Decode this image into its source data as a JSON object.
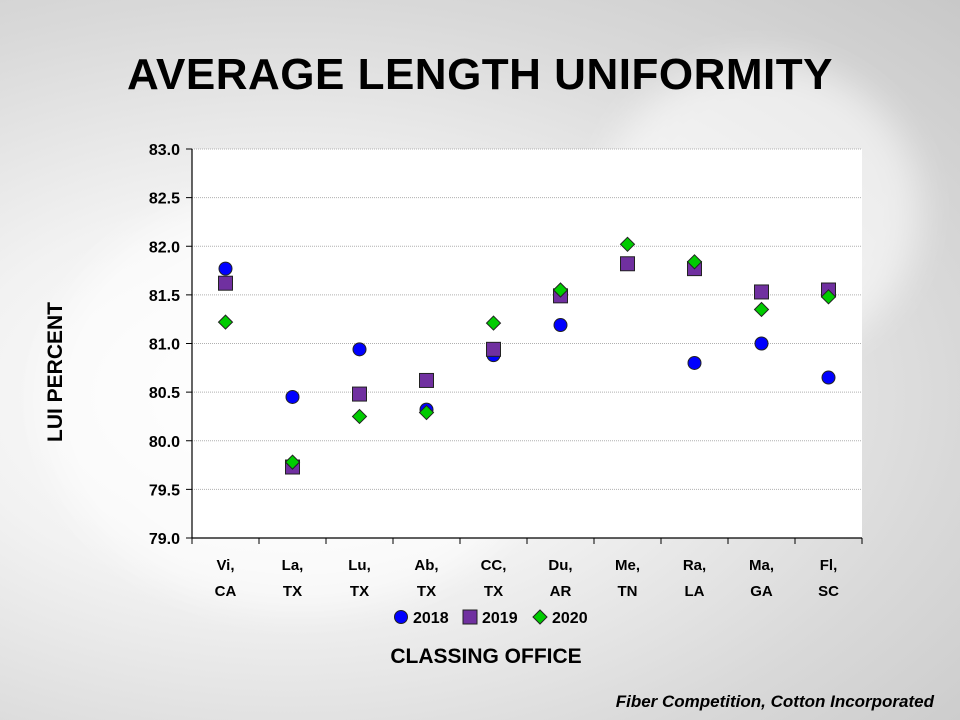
{
  "slide": {
    "title": "AVERAGE LENGTH UNIFORMITY",
    "credit": "Fiber Competition, Cotton Incorporated"
  },
  "chart_data": {
    "type": "scatter",
    "title": "",
    "xlabel": "CLASSING OFFICE",
    "ylabel": "LUI PERCENT",
    "ylim": [
      79.0,
      83.0
    ],
    "yticks": [
      "79.0",
      "79.5",
      "80.0",
      "80.5",
      "81.0",
      "81.5",
      "82.0",
      "82.5",
      "83.0"
    ],
    "categories": [
      [
        "Vi,",
        "CA"
      ],
      [
        "La,",
        "TX"
      ],
      [
        "Lu,",
        "TX"
      ],
      [
        "Ab,",
        "TX"
      ],
      [
        "CC,",
        "TX"
      ],
      [
        "Du,",
        "AR"
      ],
      [
        "Me,",
        "TN"
      ],
      [
        "Ra,",
        "LA"
      ],
      [
        "Ma,",
        "GA"
      ],
      [
        "Fl,",
        "SC"
      ]
    ],
    "grid": true,
    "legend_position": "bottom",
    "series": [
      {
        "name": "2018",
        "marker": "circle",
        "color": "#0000FF",
        "values": [
          81.77,
          80.45,
          80.94,
          80.32,
          80.88,
          81.19,
          81.82,
          80.8,
          81.0,
          80.65
        ]
      },
      {
        "name": "2019",
        "marker": "square",
        "color": "#7030A0",
        "values": [
          81.62,
          79.73,
          80.48,
          80.62,
          80.94,
          81.49,
          81.82,
          81.77,
          81.53,
          81.55
        ]
      },
      {
        "name": "2020",
        "marker": "diamond",
        "color": "#00CC00",
        "values": [
          81.22,
          79.78,
          80.25,
          80.29,
          81.21,
          81.55,
          82.02,
          81.84,
          81.35,
          81.48
        ]
      }
    ]
  }
}
